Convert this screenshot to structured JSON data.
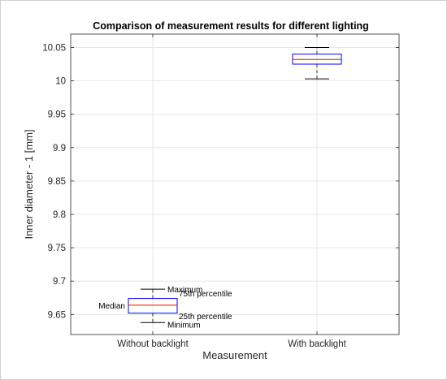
{
  "chart_data": {
    "type": "box",
    "title": "Comparison of measurement results for different lighting",
    "xlabel": "Measurement",
    "ylabel": "Inner diameter - 1 [mm]",
    "ylim": [
      9.62,
      10.07
    ],
    "yticks": [
      9.65,
      9.7,
      9.75,
      9.8,
      9.85,
      9.9,
      9.95,
      10,
      10.05
    ],
    "ytick_labels": [
      "9.65",
      "9.7",
      "9.75",
      "9.8",
      "9.85",
      "9.9",
      "9.95",
      "10",
      "10.05"
    ],
    "grid": true,
    "categories": [
      "Without backlight",
      "With backlight"
    ],
    "boxes": [
      {
        "min": 9.638,
        "q1": 9.652,
        "median": 9.664,
        "q3": 9.674,
        "max": 9.688
      },
      {
        "min": 10.003,
        "q1": 10.025,
        "median": 10.032,
        "q3": 10.04,
        "max": 10.05
      }
    ],
    "annotations": {
      "maximum": "Maximum",
      "q3": "75th percentile",
      "median": "Median",
      "q1": "25th percentile",
      "minimum": "Minimum"
    },
    "colors": {
      "box": "#0000ff",
      "median": "#ff0000",
      "whisker": "#000000",
      "grid": "#e6e6e6"
    }
  }
}
